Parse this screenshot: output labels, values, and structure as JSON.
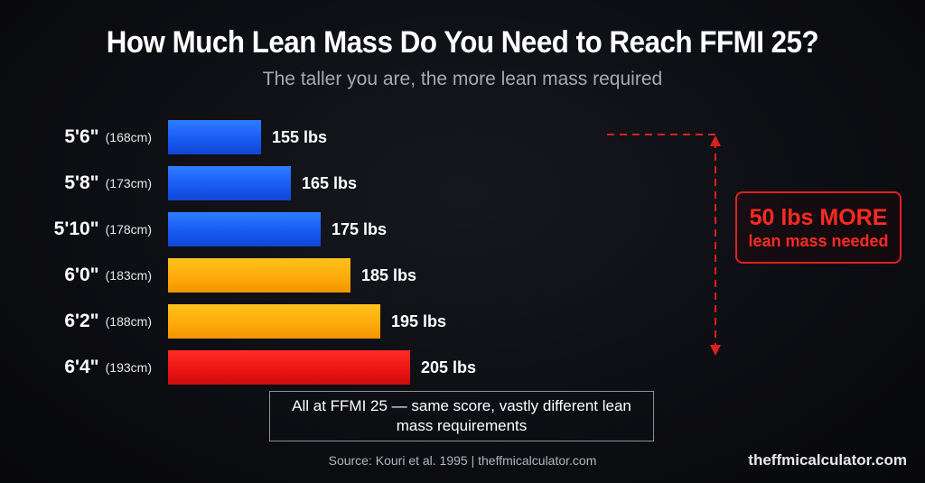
{
  "title": "How Much Lean Mass Do You Need to Reach FFMI 25?",
  "subtitle": "The taller you are, the more lean mass required",
  "chart_data": {
    "type": "bar",
    "orientation": "horizontal",
    "title": "How Much Lean Mass Do You Need to Reach FFMI 25?",
    "subtitle": "The taller you are, the more lean mass required",
    "xlabel": "",
    "ylabel": "",
    "grid": false,
    "categories": [
      "5'6\"",
      "5'8\"",
      "5'10\"",
      "6'0\"",
      "6'2\"",
      "6'4\""
    ],
    "category_sublabels": [
      "(168cm)",
      "(173cm)",
      "(178cm)",
      "(183cm)",
      "(188cm)",
      "(193cm)"
    ],
    "values": [
      155,
      165,
      175,
      185,
      195,
      205
    ],
    "value_labels": [
      "155 lbs",
      "165 lbs",
      "175 lbs",
      "185 lbs",
      "195 lbs",
      "205 lbs"
    ],
    "bar_colors": [
      "#1a5ef5",
      "#1a5ef5",
      "#1a5ef5",
      "#ffab0b",
      "#ffab0b",
      "#ec1512"
    ],
    "annotation": {
      "main": "50 lbs MORE",
      "sub": "lean mass needed"
    }
  },
  "note": "All at FFMI 25 — same score, vastly different lean mass requirements",
  "source": "Source: Kouri et al. 1995  |  theffmicalculator.com",
  "watermark": "theffmicalculator.com",
  "colors": {
    "blue": "#1a5ef5",
    "amber": "#ffab0b",
    "red": "#ec1512",
    "accent": "#ff2a22",
    "background": "#0b0c10"
  }
}
